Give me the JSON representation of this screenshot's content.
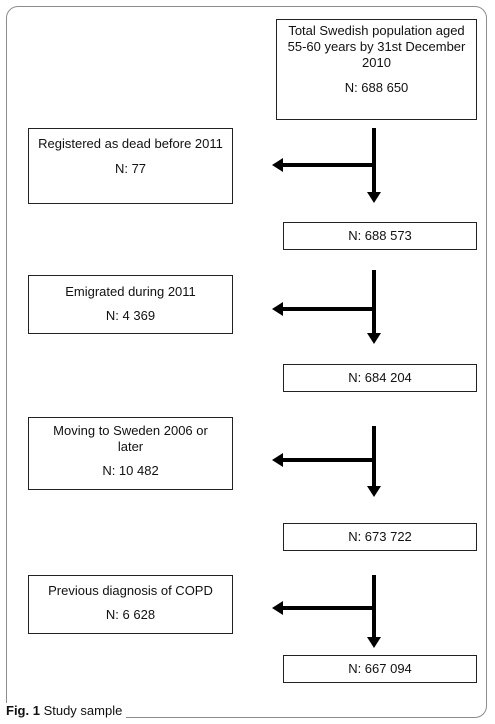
{
  "main_flow": [
    {
      "label": "Total Swedish population aged 55-60 years by 31st December 2010",
      "n": "N: 688 650"
    },
    {
      "label": "",
      "n": "N: 688 573"
    },
    {
      "label": "",
      "n": "N: 684 204"
    },
    {
      "label": "",
      "n": "N: 673 722"
    },
    {
      "label": "",
      "n": "N: 667 094"
    }
  ],
  "exclusions": [
    {
      "label": "Registered as dead before 2011",
      "n": "N: 77"
    },
    {
      "label": "Emigrated during 2011",
      "n": "N: 4 369"
    },
    {
      "label": "Moving to Sweden 2006 or later",
      "n": "N: 10 482"
    },
    {
      "label": "Previous diagnosis of COPD",
      "n": "N: 6 628"
    }
  ],
  "caption": {
    "prefix": "Fig. 1",
    "text": " Study sample"
  }
}
